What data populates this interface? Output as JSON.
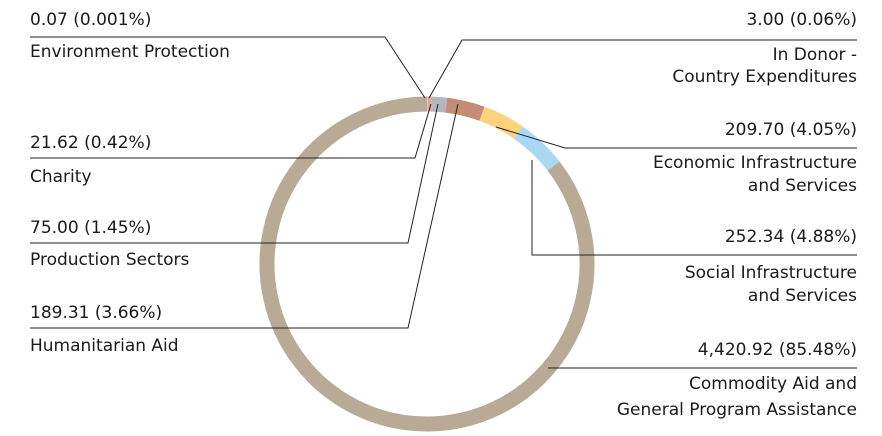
{
  "chart_data": {
    "type": "donut",
    "categories": [
      [
        "Environment Protection"
      ],
      [
        "In Donor -",
        "Country Expenditures"
      ],
      [
        "Charity"
      ],
      [
        "Production Sectors"
      ],
      [
        "Humanitarian Aid"
      ],
      [
        "Economic Infrastructure",
        "and Services"
      ],
      [
        "Social Infrastructure",
        "and Services"
      ],
      [
        "Commodity Aid and",
        "General Program Assistance"
      ]
    ],
    "values": [
      0.07,
      3.0,
      21.62,
      75.0,
      189.31,
      209.7,
      252.34,
      4420.92
    ],
    "value_labels": [
      "0.07 (0.001%)",
      "3.00 (0.06%)",
      "21.62 (0.42%)",
      "75.00 (1.45%)",
      "189.31 (3.66%)",
      "209.70 (4.05%)",
      "252.34 (4.88%)",
      "4,420.92 (85.48%)"
    ],
    "colors": [
      "#9fc28a",
      "#d9d2c4",
      "#e8a4a0",
      "#b3b6be",
      "#c48c74",
      "#fdd27c",
      "#a8d8f2",
      "#b8aa94"
    ]
  }
}
